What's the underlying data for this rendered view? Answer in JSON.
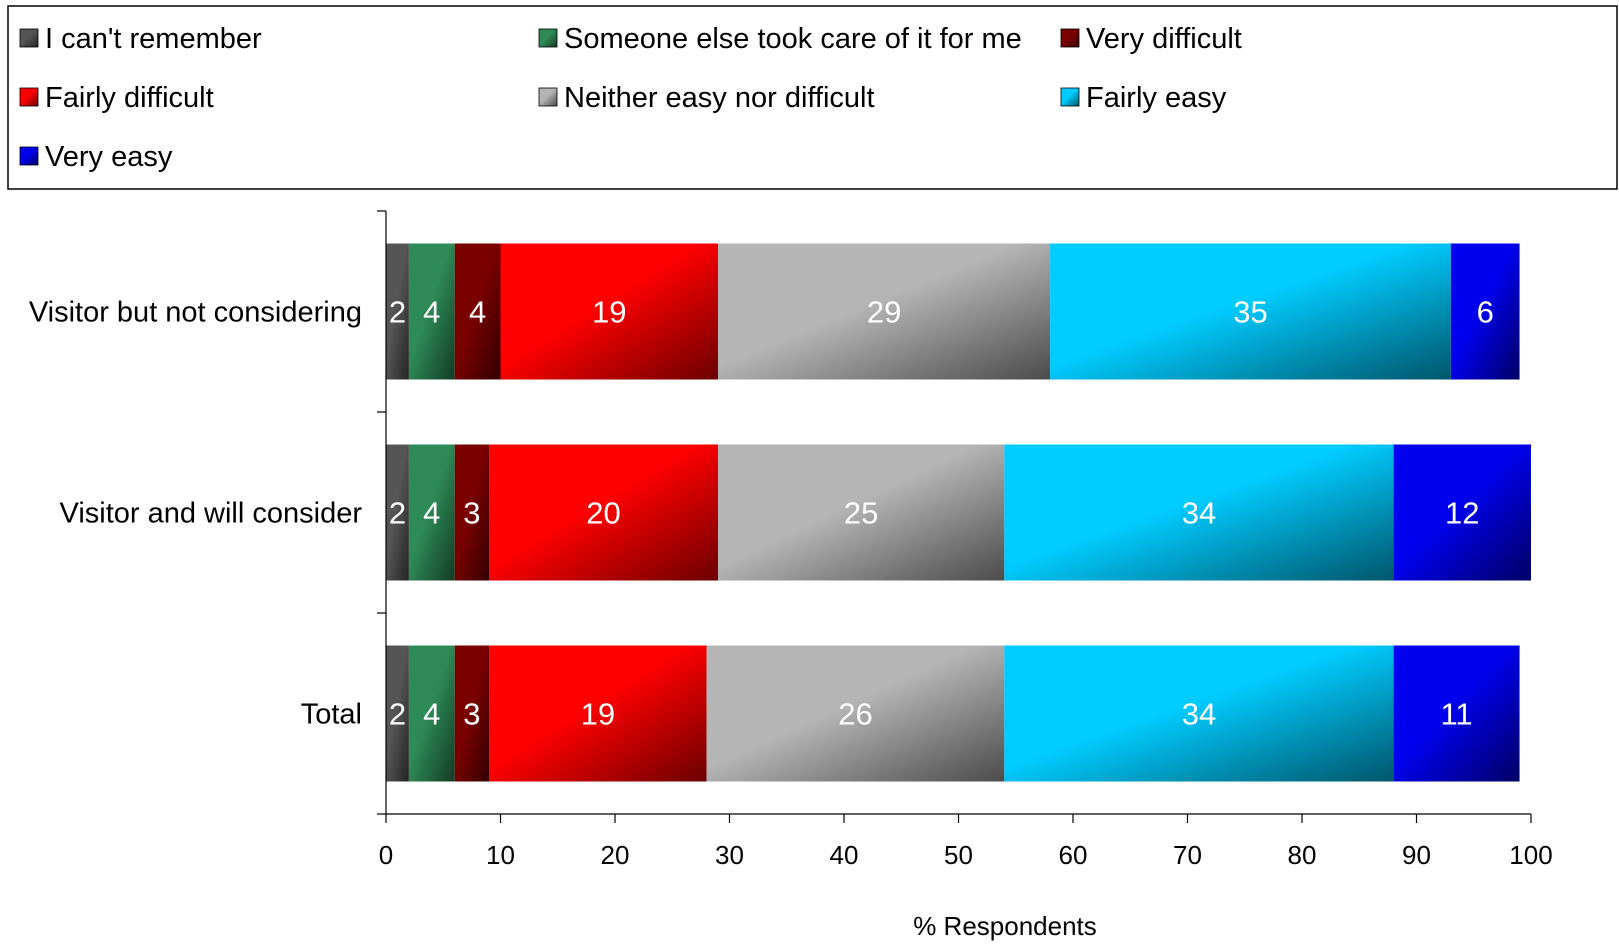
{
  "chart_data": {
    "type": "bar",
    "orientation": "horizontal",
    "stacked": true,
    "categories": [
      "Visitor but not considering",
      "Visitor and will consider",
      "Total"
    ],
    "series": [
      {
        "name": "I can't remember",
        "color": "#555555",
        "values": [
          2,
          2,
          2
        ]
      },
      {
        "name": "Someone else took care of it for me",
        "color": "#2e8b57",
        "values": [
          4,
          4,
          4
        ]
      },
      {
        "name": "Very difficult",
        "color": "#7a0000",
        "values": [
          4,
          3,
          3
        ]
      },
      {
        "name": "Fairly difficult",
        "color": "#ff0000",
        "values": [
          19,
          20,
          19
        ]
      },
      {
        "name": "Neither easy nor difficult",
        "color": "#b5b5b5",
        "values": [
          29,
          25,
          26
        ]
      },
      {
        "name": "Fairly easy",
        "color": "#00ccff",
        "values": [
          35,
          34,
          34
        ]
      },
      {
        "name": "Very easy",
        "color": "#0000ee",
        "values": [
          6,
          12,
          11
        ]
      }
    ],
    "xlabel": "% Respondents",
    "ylabel": "",
    "xlim": [
      0,
      100
    ],
    "xticks": [
      "0",
      "10",
      "20",
      "30",
      "40",
      "50",
      "60",
      "70",
      "80",
      "90",
      "100"
    ],
    "grid": false,
    "legend_position": "top"
  }
}
